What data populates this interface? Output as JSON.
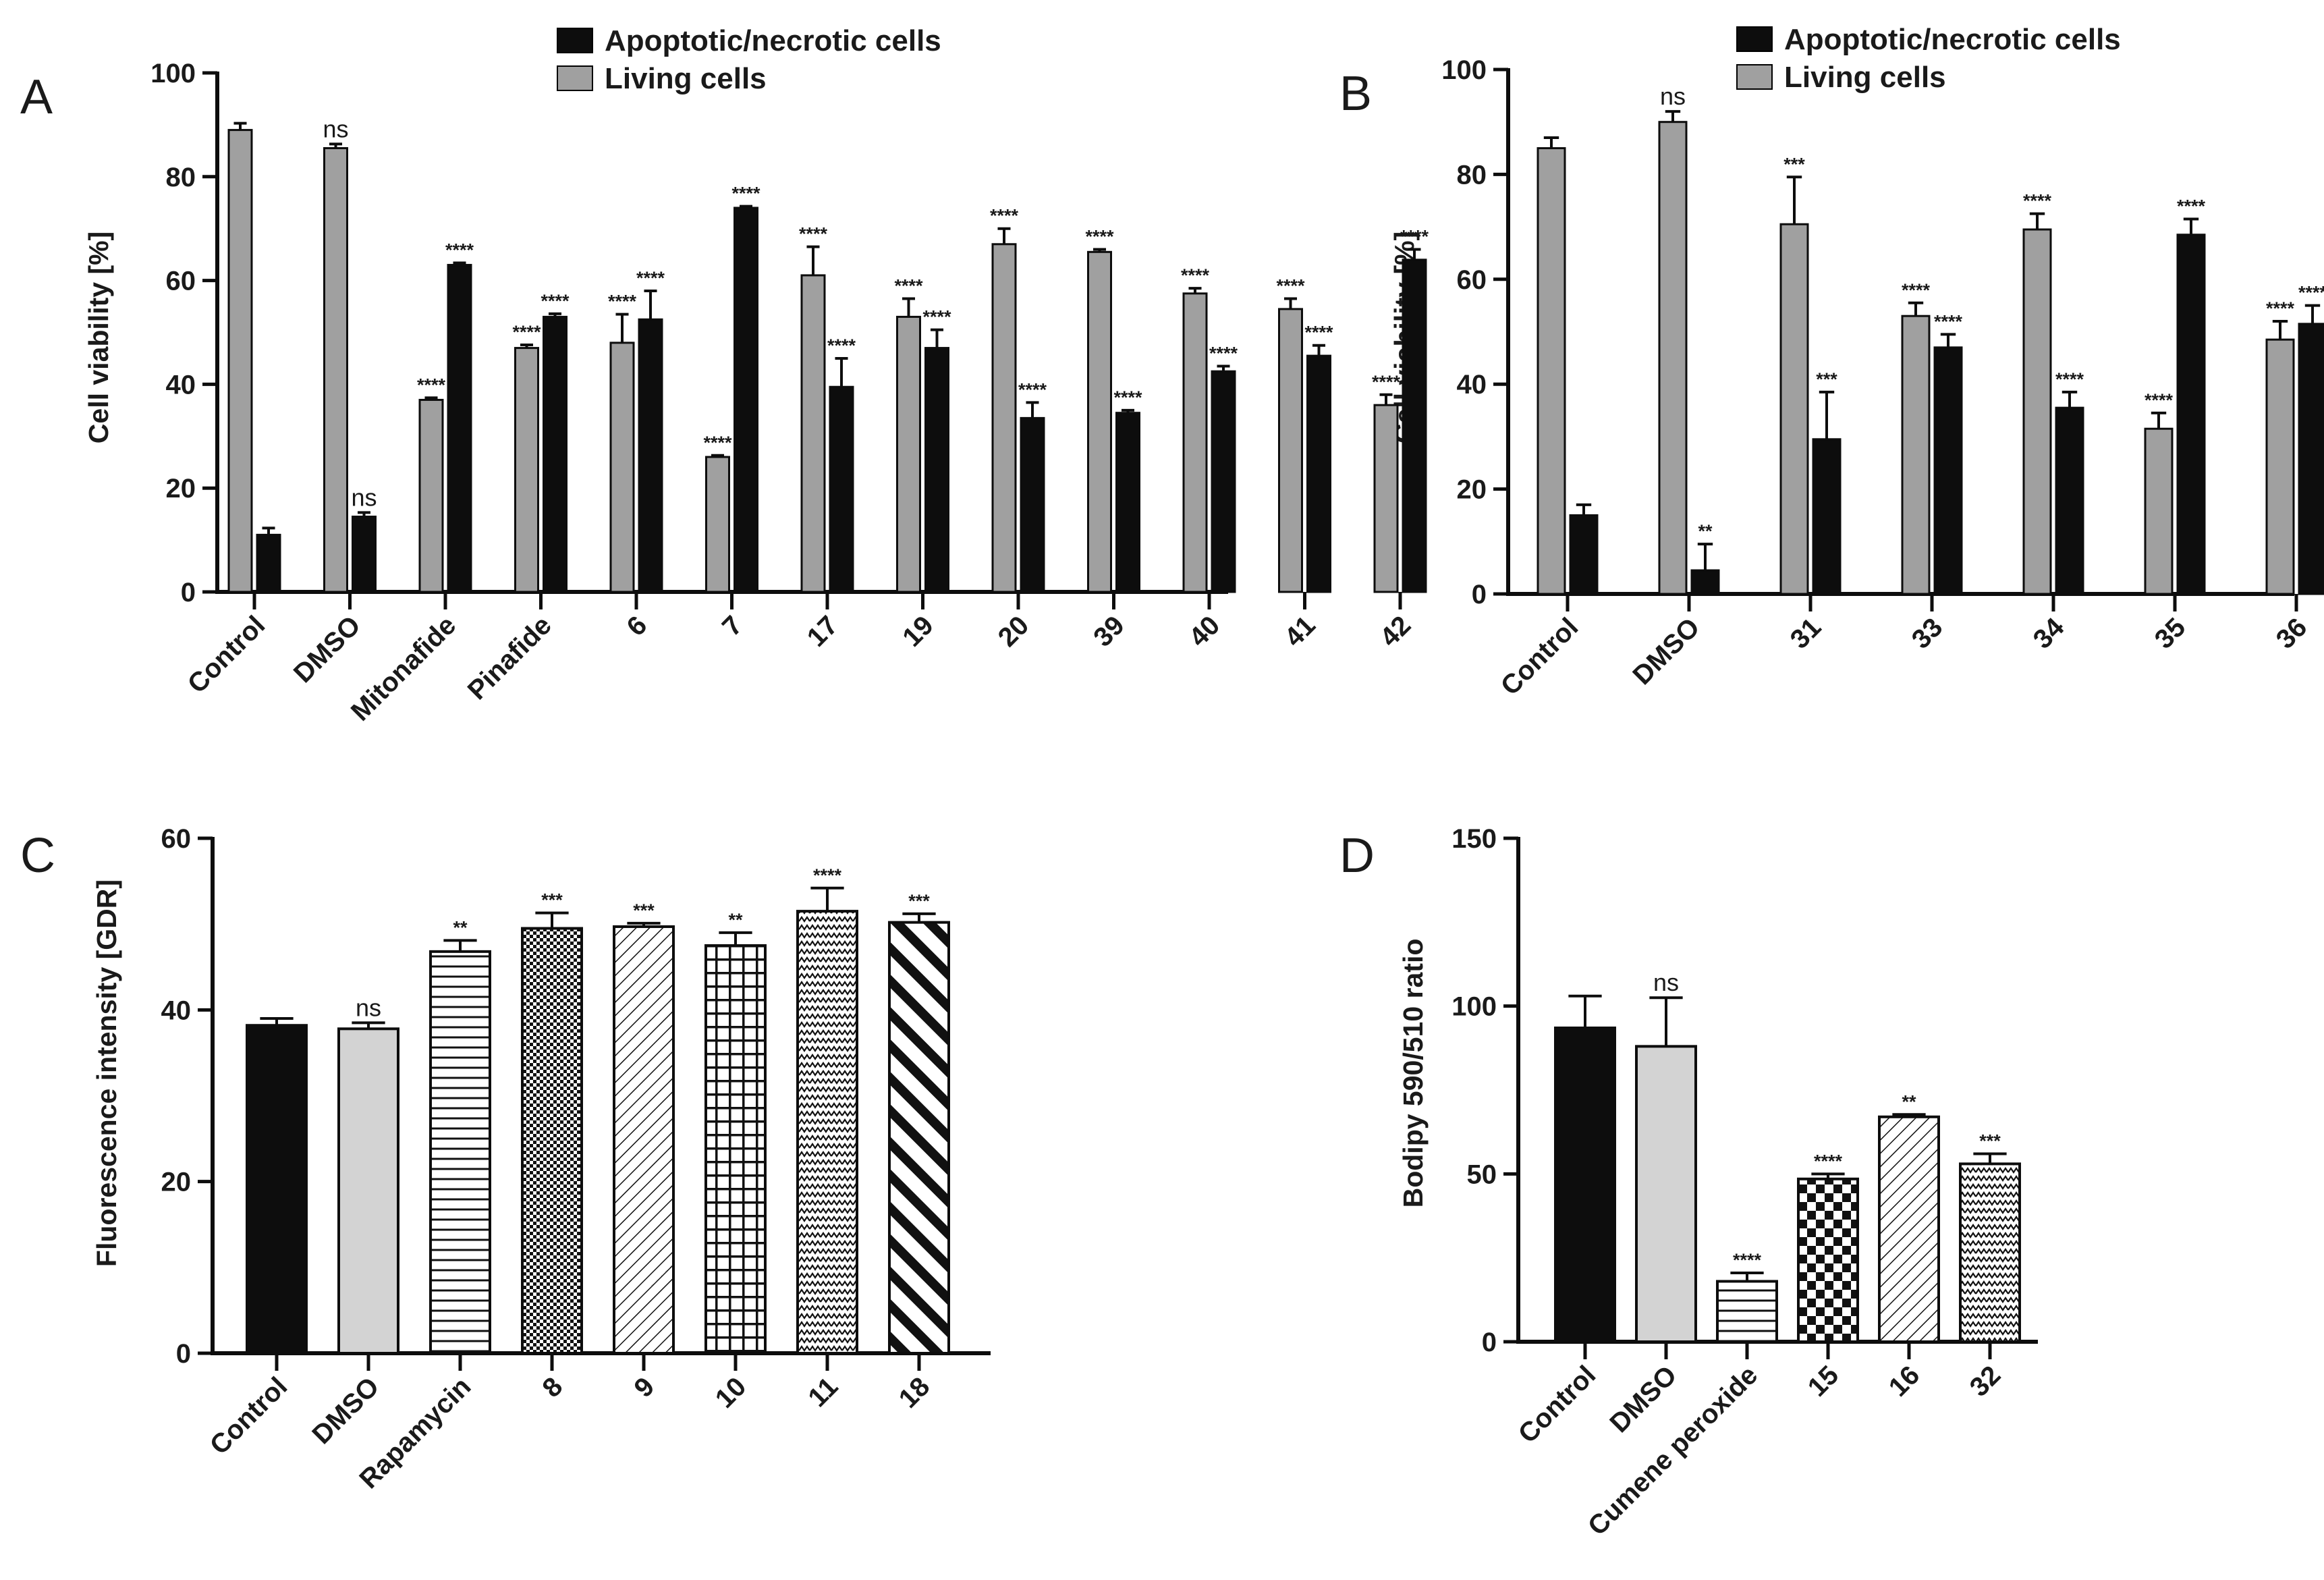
{
  "colors": {
    "living": "#a0a0a0",
    "dead": "#0d0d0d",
    "dmso_light": "#d3d3d3",
    "axis": "#0d0d0d"
  },
  "chart_data": [
    {
      "panel": "A",
      "type": "bar",
      "ylabel": "Cell viability [%]",
      "ylim": [
        0,
        100
      ],
      "yticks": [
        "0",
        "20",
        "40",
        "60",
        "80",
        "100"
      ],
      "legend": [
        "Apoptotic/necrotic cells",
        "Living cells"
      ],
      "categories": [
        "Control",
        "DMSO",
        "Mitonafide",
        "Pinafide",
        "6",
        "7",
        "17",
        "19",
        "20",
        "39",
        "40",
        "41",
        "42"
      ],
      "series": [
        {
          "name": "Living cells",
          "values": [
            89,
            85.5,
            37,
            47,
            48,
            26,
            61,
            53,
            67,
            65.5,
            57.5,
            54.5,
            36
          ],
          "errors": [
            1.3,
            0.8,
            0.4,
            0.6,
            5.5,
            0.3,
            5.5,
            3.5,
            3,
            0.5,
            1,
            2,
            2
          ],
          "labels": [
            "",
            "ns",
            "****",
            "****",
            "****",
            "****",
            "****",
            "****",
            "****",
            "****",
            "****",
            "****",
            "****"
          ]
        },
        {
          "name": "Apoptotic/necrotic cells",
          "values": [
            11,
            14.5,
            63,
            53,
            52.5,
            74,
            39.5,
            47,
            33.5,
            34.5,
            42.5,
            45.5,
            64
          ],
          "errors": [
            1.3,
            0.8,
            0.4,
            0.6,
            5.5,
            0.3,
            5.5,
            3.5,
            3,
            0.5,
            1,
            2,
            2
          ],
          "labels": [
            "",
            "ns",
            "****",
            "****",
            "****",
            "****",
            "****",
            "****",
            "****",
            "****",
            "****",
            "****",
            "****"
          ]
        }
      ]
    },
    {
      "panel": "B",
      "type": "bar",
      "ylabel": "Cell viability [%]",
      "ylim": [
        0,
        100
      ],
      "yticks": [
        "0",
        "20",
        "40",
        "60",
        "80",
        "100"
      ],
      "legend": [
        "Apoptotic/necrotic cells",
        "Living cells"
      ],
      "categories": [
        "Control",
        "DMSO",
        "31",
        "33",
        "34",
        "35",
        "36"
      ],
      "series": [
        {
          "name": "Living cells",
          "values": [
            85,
            90,
            70.5,
            53,
            69.5,
            31.5,
            48.5
          ],
          "errors": [
            2,
            2,
            9,
            2.5,
            3,
            3,
            3.5
          ],
          "labels": [
            "",
            "ns",
            "***",
            "****",
            "****",
            "****",
            "****"
          ]
        },
        {
          "name": "Apoptotic/necrotic cells",
          "values": [
            15,
            4.5,
            29.5,
            47,
            35.5,
            68.5,
            51.5
          ],
          "errors": [
            2,
            5,
            9,
            2.5,
            3,
            3,
            3.5
          ],
          "labels": [
            "",
            "**",
            "***",
            "****",
            "****",
            "****",
            "****"
          ]
        }
      ]
    },
    {
      "panel": "C",
      "type": "bar",
      "ylabel": "Fluorescence intensity [GDR]",
      "ylim": [
        0,
        60
      ],
      "yticks": [
        "0",
        "20",
        "40",
        "60"
      ],
      "categories": [
        "Control",
        "DMSO",
        "Rapamycin",
        "8",
        "9",
        "10",
        "11",
        "18"
      ],
      "values": [
        38.2,
        37.8,
        46.8,
        49.5,
        49.7,
        47.5,
        51.5,
        50.2
      ],
      "errors": [
        0.8,
        0.7,
        1.3,
        1.8,
        0.4,
        1.5,
        2.7,
        1
      ],
      "labels": [
        "",
        "ns",
        "**",
        "***",
        "***",
        "**",
        "****",
        "***"
      ],
      "fills": [
        "solid-black",
        "solid-light",
        "horizontal-lines",
        "fine-checker",
        "diagonal-lines",
        "grid",
        "zigzag",
        "thick-diagonal"
      ]
    },
    {
      "panel": "D",
      "type": "bar",
      "ylabel": "Bodipy 590/510 ratio",
      "ylim": [
        0,
        150
      ],
      "yticks": [
        "0",
        "50",
        "100",
        "150"
      ],
      "categories": [
        "Control",
        "DMSO",
        "Cumene peroxide",
        "15",
        "16",
        "32"
      ],
      "values": [
        93.5,
        88,
        18,
        48.5,
        67,
        53
      ],
      "errors": [
        9.5,
        14.5,
        2.5,
        1.5,
        0.7,
        3
      ],
      "labels": [
        "",
        "ns",
        "****",
        "****",
        "**",
        "***"
      ],
      "fills": [
        "solid-black",
        "solid-light",
        "horizontal-lines",
        "checker",
        "diagonal-lines",
        "zigzag"
      ]
    }
  ]
}
